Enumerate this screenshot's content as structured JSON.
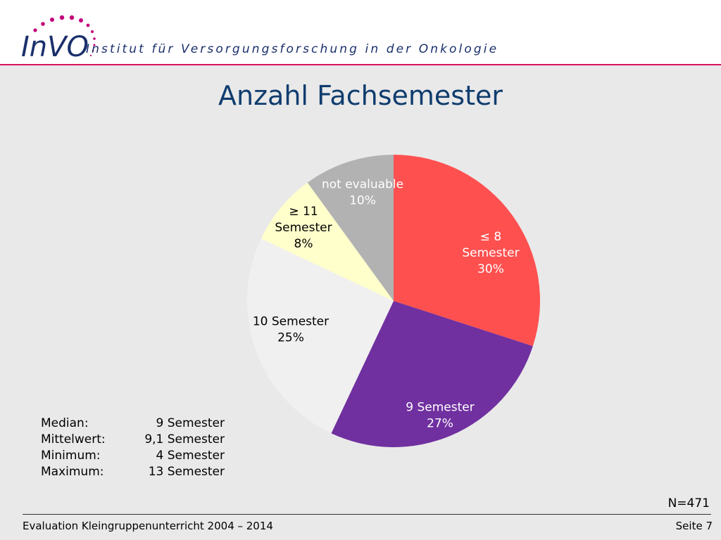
{
  "header": {
    "logo_text": "InVO",
    "institute_name": "Institut für Versorgungsforschung in der Onkologie",
    "accent_color": "#d4145a",
    "logo_text_color": "#1a2f6b",
    "logo_dot_color": "#c2007a"
  },
  "title": "Anzahl Fachsemester",
  "chart_data": {
    "type": "pie",
    "title": "Anzahl Fachsemester",
    "start_angle": "12 o'clock",
    "direction": "clockwise",
    "slices": [
      {
        "label_lines": [
          "≤ 8",
          "Semester",
          "30%"
        ],
        "value": 30,
        "color": "#ff5050",
        "text_color": "#ffffff"
      },
      {
        "label_lines": [
          "9 Semester",
          "27%"
        ],
        "value": 27,
        "color": "#7030a0",
        "text_color": "#ffffff"
      },
      {
        "label_lines": [
          "10 Semester",
          "25%"
        ],
        "value": 25,
        "color": "#f0f0f0",
        "text_color": "#000000"
      },
      {
        "label_lines": [
          "≥ 11",
          "Semester",
          "8%"
        ],
        "value": 8,
        "color": "#ffffcc",
        "text_color": "#000000"
      },
      {
        "label_lines": [
          "not evaluable",
          "10%"
        ],
        "value": 10,
        "color": "#b2b2b2",
        "text_color": "#ffffff"
      }
    ]
  },
  "stats": [
    {
      "label": "Median:",
      "value": "9 Semester"
    },
    {
      "label": "Mittelwert:",
      "value": "9,1 Semester"
    },
    {
      "label": "Minimum:",
      "value": "4 Semester"
    },
    {
      "label": "Maximum:",
      "value": "13 Semester"
    }
  ],
  "n_label": "N=471",
  "footer": {
    "left": "Evaluation Kleingruppenunterricht 2004 – 2014",
    "right": "Seite 7"
  }
}
